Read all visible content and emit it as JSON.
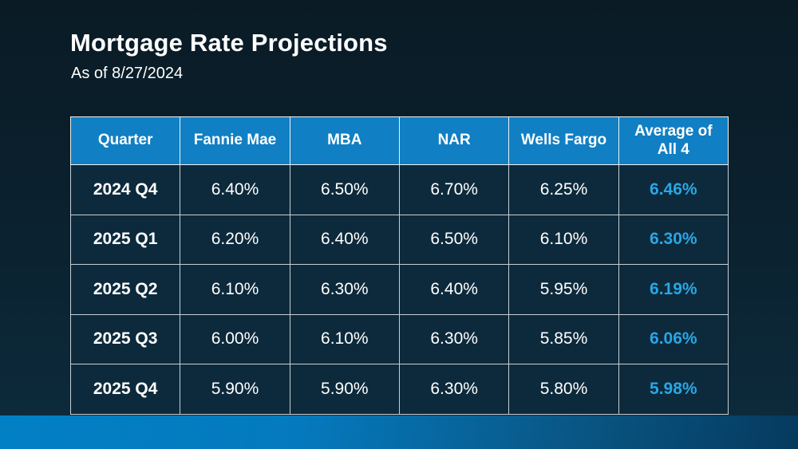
{
  "page": {
    "title": "Mortgage Rate Projections",
    "subtitle": "As of 8/27/2024"
  },
  "chart_data": {
    "type": "table",
    "title": "Mortgage Rate Projections",
    "subtitle": "As of 8/27/2024",
    "columns": [
      "Quarter",
      "Fannie Mae",
      "MBA",
      "NAR",
      "Wells Fargo",
      "Average of All 4"
    ],
    "rows": [
      [
        "2024 Q4",
        "6.40%",
        "6.50%",
        "6.70%",
        "6.25%",
        "6.46%"
      ],
      [
        "2025 Q1",
        "6.20%",
        "6.40%",
        "6.50%",
        "6.10%",
        "6.30%"
      ],
      [
        "2025 Q2",
        "6.10%",
        "6.30%",
        "6.40%",
        "5.95%",
        "6.19%"
      ],
      [
        "2025 Q3",
        "6.00%",
        "6.10%",
        "6.30%",
        "5.85%",
        "6.06%"
      ],
      [
        "2025 Q4",
        "5.90%",
        "5.90%",
        "6.30%",
        "5.80%",
        "5.98%"
      ]
    ],
    "layout_hints": {
      "highlight_column": "Average of All 4",
      "header_style": "blue band, white bold text",
      "grid": "on"
    }
  },
  "colors": {
    "header-bg": "#117fc3",
    "cell-bg": "#0d2a3c",
    "average-text": "#2aa6e3",
    "accent-bar-left": "#0280c6",
    "accent-bar-right": "#053a5e",
    "background-top": "#0a1b25",
    "background-bottom": "#0c2c3e"
  }
}
